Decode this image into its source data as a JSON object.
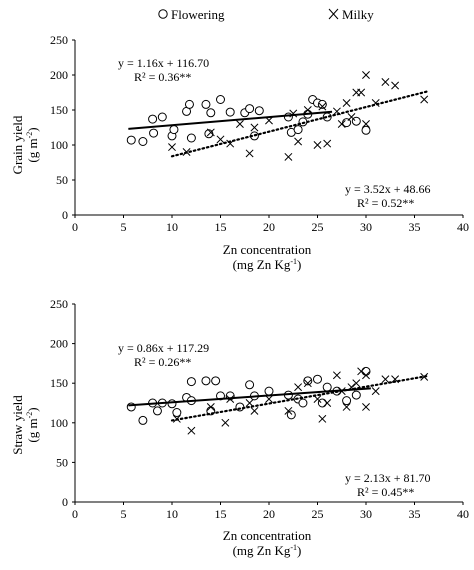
{
  "legend": {
    "flowering_label": "Flowering",
    "milky_label": "Milky",
    "position": "top"
  },
  "chart_data": [
    {
      "type": "scatter",
      "xlabel": "Zn concentration",
      "xlabel2": "(mg Zn Kg",
      "xlabel2_sup": "-1",
      "xlabel2_end": ")",
      "ylabel": "Grain yield",
      "ylabel2": "(g m",
      "ylabel2_sup": "-2",
      "ylabel2_end": ")",
      "xlim": [
        0,
        40
      ],
      "ylim": [
        0,
        250
      ],
      "xticks": [
        0,
        5,
        10,
        15,
        20,
        25,
        30,
        35,
        40
      ],
      "yticks": [
        0,
        50,
        100,
        150,
        200,
        250
      ],
      "grid": false,
      "series": [
        {
          "name": "Flowering",
          "marker": "circle",
          "x": [
            5.8,
            7.0,
            8.0,
            8.1,
            9.0,
            10.0,
            10.2,
            11.5,
            11.8,
            12.0,
            13.5,
            13.8,
            14.0,
            15.0,
            16.0,
            17.5,
            18.0,
            18.5,
            19.0,
            22.0,
            22.3,
            23.0,
            23.5,
            24.0,
            24.5,
            25.0,
            25.5,
            26.0,
            28.0,
            29.0,
            30.0
          ],
          "y": [
            107,
            105,
            137,
            117,
            140,
            113,
            122,
            148,
            158,
            110,
            158,
            116,
            146,
            165,
            147,
            146,
            152,
            113,
            149,
            140,
            118,
            122,
            133,
            144,
            165,
            160,
            158,
            140,
            132,
            134,
            121
          ]
        },
        {
          "name": "Milky",
          "marker": "x",
          "x": [
            10.0,
            11.5,
            14.0,
            15.0,
            16.0,
            17.0,
            18.0,
            18.5,
            20.0,
            22.0,
            22.5,
            23.0,
            24.0,
            25.0,
            25.5,
            26.0,
            27.0,
            27.5,
            28.0,
            28.5,
            29.0,
            29.5,
            30.0,
            30.0,
            31.0,
            32.0,
            33.0,
            36.0
          ],
          "y": [
            97,
            90,
            118,
            108,
            102,
            130,
            88,
            125,
            135,
            83,
            145,
            105,
            150,
            100,
            155,
            102,
            148,
            130,
            160,
            140,
            175,
            175,
            200,
            130,
            160,
            190,
            185,
            165
          ]
        }
      ],
      "trendlines": [
        {
          "series": "Flowering",
          "style": "solid",
          "slope": 1.16,
          "intercept": 116.7,
          "x_range": [
            5.5,
            26.5
          ],
          "equation": "y = 1.16x + 116.70",
          "r2": "R² = 0.36**"
        },
        {
          "series": "Milky",
          "style": "dotted",
          "slope": 3.52,
          "intercept": 48.66,
          "x_range": [
            10.0,
            36.5
          ],
          "equation": "y = 3.52x + 48.66",
          "r2": "R² = 0.52**"
        }
      ]
    },
    {
      "type": "scatter",
      "xlabel": "Zn concentration",
      "xlabel2": "(mg Zn Kg",
      "xlabel2_sup": "-1",
      "xlabel2_end": ")",
      "ylabel": "Straw yield",
      "ylabel2": "(g m",
      "ylabel2_sup": "-2",
      "ylabel2_end": ")",
      "xlim": [
        0,
        40
      ],
      "ylim": [
        0,
        250
      ],
      "xticks": [
        0,
        5,
        10,
        15,
        20,
        25,
        30,
        35,
        40
      ],
      "yticks": [
        0,
        50,
        100,
        150,
        200,
        250
      ],
      "grid": false,
      "series": [
        {
          "name": "Flowering",
          "marker": "circle",
          "x": [
            5.8,
            7.0,
            8.0,
            8.5,
            9.0,
            10.0,
            10.5,
            11.5,
            12.0,
            12.0,
            13.5,
            14.0,
            14.5,
            15.0,
            16.0,
            17.0,
            18.0,
            18.5,
            20.0,
            22.0,
            22.3,
            23.0,
            23.5,
            24.0,
            25.0,
            25.5,
            26.0,
            27.0,
            28.0,
            29.0,
            30.0
          ],
          "y": [
            120,
            103,
            125,
            115,
            125,
            124,
            113,
            132,
            152,
            128,
            153,
            115,
            153,
            134,
            134,
            120,
            148,
            134,
            140,
            135,
            110,
            130,
            125,
            153,
            155,
            125,
            145,
            140,
            128,
            135,
            165
          ]
        },
        {
          "name": "Milky",
          "marker": "x",
          "x": [
            10.5,
            12.0,
            14.0,
            15.5,
            16.0,
            18.0,
            18.5,
            20.0,
            22.0,
            23.0,
            24.0,
            25.0,
            25.5,
            26.0,
            27.0,
            27.5,
            28.0,
            28.5,
            29.0,
            29.5,
            30.0,
            30.0,
            31.0,
            32.0,
            33.0,
            36.0
          ],
          "y": [
            105,
            90,
            120,
            100,
            130,
            125,
            115,
            130,
            115,
            145,
            150,
            130,
            105,
            125,
            160,
            140,
            120,
            145,
            150,
            165,
            160,
            120,
            140,
            155,
            155,
            158
          ]
        }
      ],
      "trendlines": [
        {
          "series": "Flowering",
          "style": "solid",
          "slope": 0.86,
          "intercept": 117.29,
          "x_range": [
            5.5,
            30.5
          ],
          "equation": "y = 0.86x + 117.29",
          "r2": "R² = 0.26**"
        },
        {
          "series": "Milky",
          "style": "dotted",
          "slope": 2.13,
          "intercept": 81.7,
          "x_range": [
            10.0,
            36.5
          ],
          "equation": "y = 2.13x + 81.70",
          "r2": "R² = 0.45**"
        }
      ]
    }
  ]
}
